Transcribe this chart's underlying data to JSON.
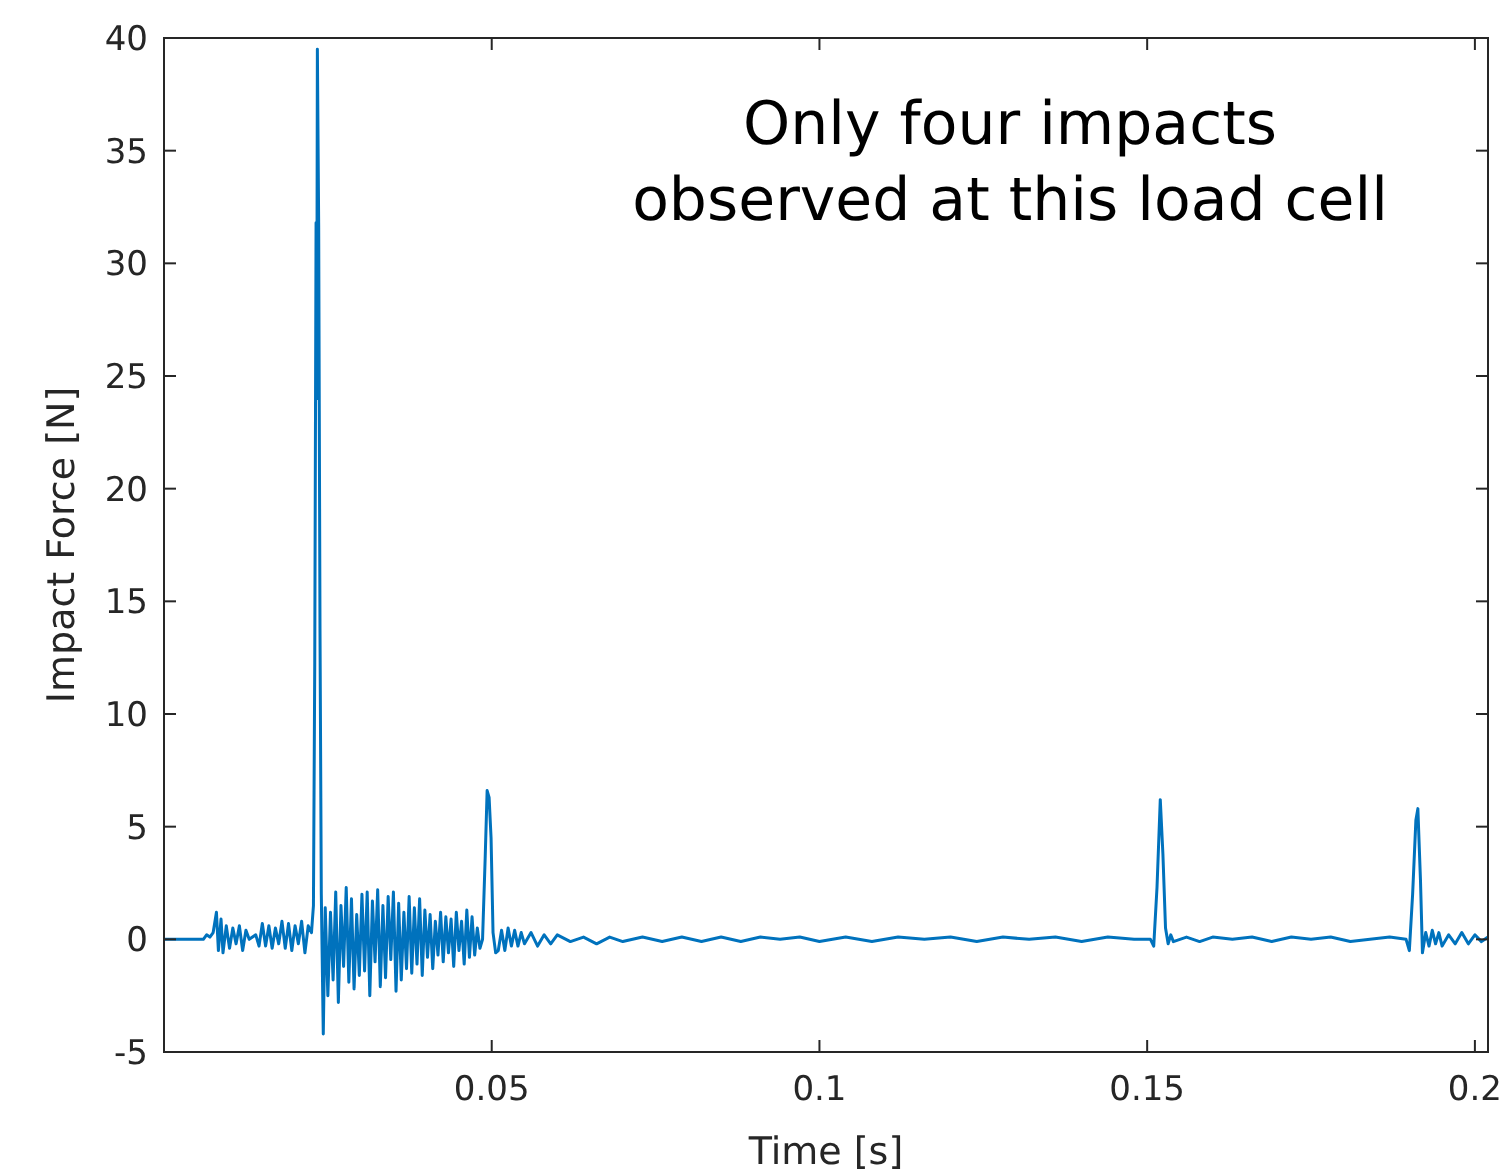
{
  "chart_data": {
    "type": "line",
    "xlabel": "Time [s]",
    "ylabel": "Impact Force [N]",
    "annotations": [
      "Only four impacts\nobserved at this load cell"
    ],
    "xlim": [
      0,
      0.202
    ],
    "xticks": [
      0.05,
      0.1,
      0.15,
      0.2
    ],
    "ylim": [
      -5,
      40
    ],
    "yticks": [
      -5,
      0,
      5,
      10,
      15,
      20,
      25,
      30,
      35,
      40
    ],
    "grid": false,
    "marker": "none",
    "line_style": "solid",
    "series": [
      {
        "color": "#0072bd",
        "x": [
          0,
          0.006,
          0.0065,
          0.007,
          0.0075,
          0.008,
          0.0083,
          0.0087,
          0.009,
          0.0095,
          0.01,
          0.0105,
          0.011,
          0.0115,
          0.012,
          0.0125,
          0.013,
          0.014,
          0.0145,
          0.015,
          0.0155,
          0.016,
          0.0165,
          0.017,
          0.0175,
          0.018,
          0.0185,
          0.019,
          0.0195,
          0.02,
          0.0205,
          0.021,
          0.0215,
          0.022,
          0.0225,
          0.0228,
          0.023,
          0.0232,
          0.0233,
          0.0234,
          0.0236,
          0.0238,
          0.024,
          0.0243,
          0.0246,
          0.025,
          0.0254,
          0.0258,
          0.0262,
          0.0266,
          0.027,
          0.0274,
          0.0278,
          0.0282,
          0.0286,
          0.029,
          0.0294,
          0.0298,
          0.0302,
          0.0306,
          0.031,
          0.0314,
          0.0318,
          0.0322,
          0.0326,
          0.033,
          0.0334,
          0.0338,
          0.0342,
          0.0346,
          0.035,
          0.0354,
          0.0358,
          0.0362,
          0.0366,
          0.037,
          0.0374,
          0.0378,
          0.0382,
          0.0386,
          0.039,
          0.0394,
          0.0398,
          0.0402,
          0.0406,
          0.041,
          0.0414,
          0.0418,
          0.0422,
          0.0426,
          0.043,
          0.0434,
          0.0438,
          0.0442,
          0.0446,
          0.045,
          0.0454,
          0.0458,
          0.0462,
          0.0466,
          0.047,
          0.0474,
          0.0478,
          0.0482,
          0.0486,
          0.049,
          0.0493,
          0.0496,
          0.0499,
          0.0502,
          0.0506,
          0.051,
          0.0515,
          0.052,
          0.0525,
          0.053,
          0.0535,
          0.054,
          0.0545,
          0.055,
          0.056,
          0.057,
          0.058,
          0.059,
          0.06,
          0.062,
          0.064,
          0.066,
          0.068,
          0.07,
          0.073,
          0.076,
          0.079,
          0.082,
          0.085,
          0.088,
          0.091,
          0.094,
          0.097,
          0.1,
          0.104,
          0.108,
          0.112,
          0.116,
          0.12,
          0.124,
          0.128,
          0.132,
          0.136,
          0.14,
          0.144,
          0.148,
          0.1505,
          0.151,
          0.1515,
          0.152,
          0.1524,
          0.1528,
          0.1532,
          0.1536,
          0.154,
          0.156,
          0.158,
          0.16,
          0.163,
          0.166,
          0.169,
          0.172,
          0.175,
          0.178,
          0.181,
          0.184,
          0.187,
          0.1895,
          0.19,
          0.1905,
          0.191,
          0.1913,
          0.1917,
          0.192,
          0.1925,
          0.193,
          0.1935,
          0.194,
          0.1945,
          0.195,
          0.196,
          0.197,
          0.198,
          0.199,
          0.2,
          0.201,
          0.202
        ],
        "values": [
          0,
          0,
          0.2,
          0.1,
          0.3,
          1.2,
          -0.5,
          0.9,
          -0.6,
          0.6,
          -0.4,
          0.5,
          -0.2,
          0.6,
          -0.5,
          0.4,
          0,
          0.2,
          -0.3,
          0.7,
          -0.3,
          0.6,
          -0.4,
          0.5,
          -0.2,
          0.8,
          -0.4,
          0.7,
          -0.5,
          0.6,
          -0.2,
          0.8,
          -0.6,
          0.6,
          0.3,
          1.5,
          12.3,
          31.8,
          24,
          39.5,
          31.6,
          13.8,
          2,
          -4.2,
          1.4,
          -2.5,
          1.2,
          -1.8,
          2.1,
          -2.8,
          1.5,
          -1.2,
          2.3,
          -1.9,
          1.8,
          -2.2,
          1.1,
          -1.6,
          2,
          -1.4,
          2.1,
          -2.5,
          1.7,
          -1,
          2.2,
          -2.1,
          1.5,
          -1.7,
          1.9,
          -0.9,
          2.1,
          -2.3,
          1.6,
          -1.8,
          1.2,
          -1.3,
          1.9,
          -1.5,
          1.4,
          -1.1,
          1.8,
          -1.6,
          1.3,
          -0.8,
          1.1,
          -1.3,
          0.8,
          -0.7,
          1.2,
          -1,
          1,
          -0.6,
          0.9,
          -1.2,
          1.2,
          -0.5,
          0.8,
          -1.1,
          1.3,
          -0.8,
          1,
          -0.7,
          0.5,
          -0.4,
          0,
          3.6,
          6.6,
          6.3,
          4.5,
          0.3,
          -0.6,
          -0.5,
          0.4,
          -0.5,
          0.5,
          -0.3,
          0.4,
          -0.3,
          0.3,
          -0.2,
          0.3,
          -0.3,
          0.2,
          -0.2,
          0.2,
          -0.1,
          0.1,
          -0.2,
          0.1,
          -0.1,
          0.1,
          -0.1,
          0.1,
          -0.1,
          0.1,
          -0.1,
          0.1,
          0,
          0.1,
          -0.1,
          0.1,
          -0.1,
          0.1,
          0,
          0.1,
          -0.1,
          0.1,
          0,
          0.1,
          -0.1,
          0.1,
          0,
          0,
          -0.3,
          2.3,
          6.2,
          3.8,
          0.5,
          -0.2,
          0.2,
          -0.1,
          0.1,
          -0.1,
          0.1,
          0,
          0.1,
          -0.1,
          0.1,
          0,
          0.1,
          -0.1,
          0,
          0.1,
          0,
          -0.5,
          2,
          5.3,
          5.8,
          2.6,
          -0.6,
          0.3,
          -0.3,
          0.4,
          -0.2,
          0.3,
          -0.3,
          0.2,
          -0.2,
          0.3,
          -0.2,
          0.2,
          -0.1,
          0.1
        ]
      }
    ]
  }
}
